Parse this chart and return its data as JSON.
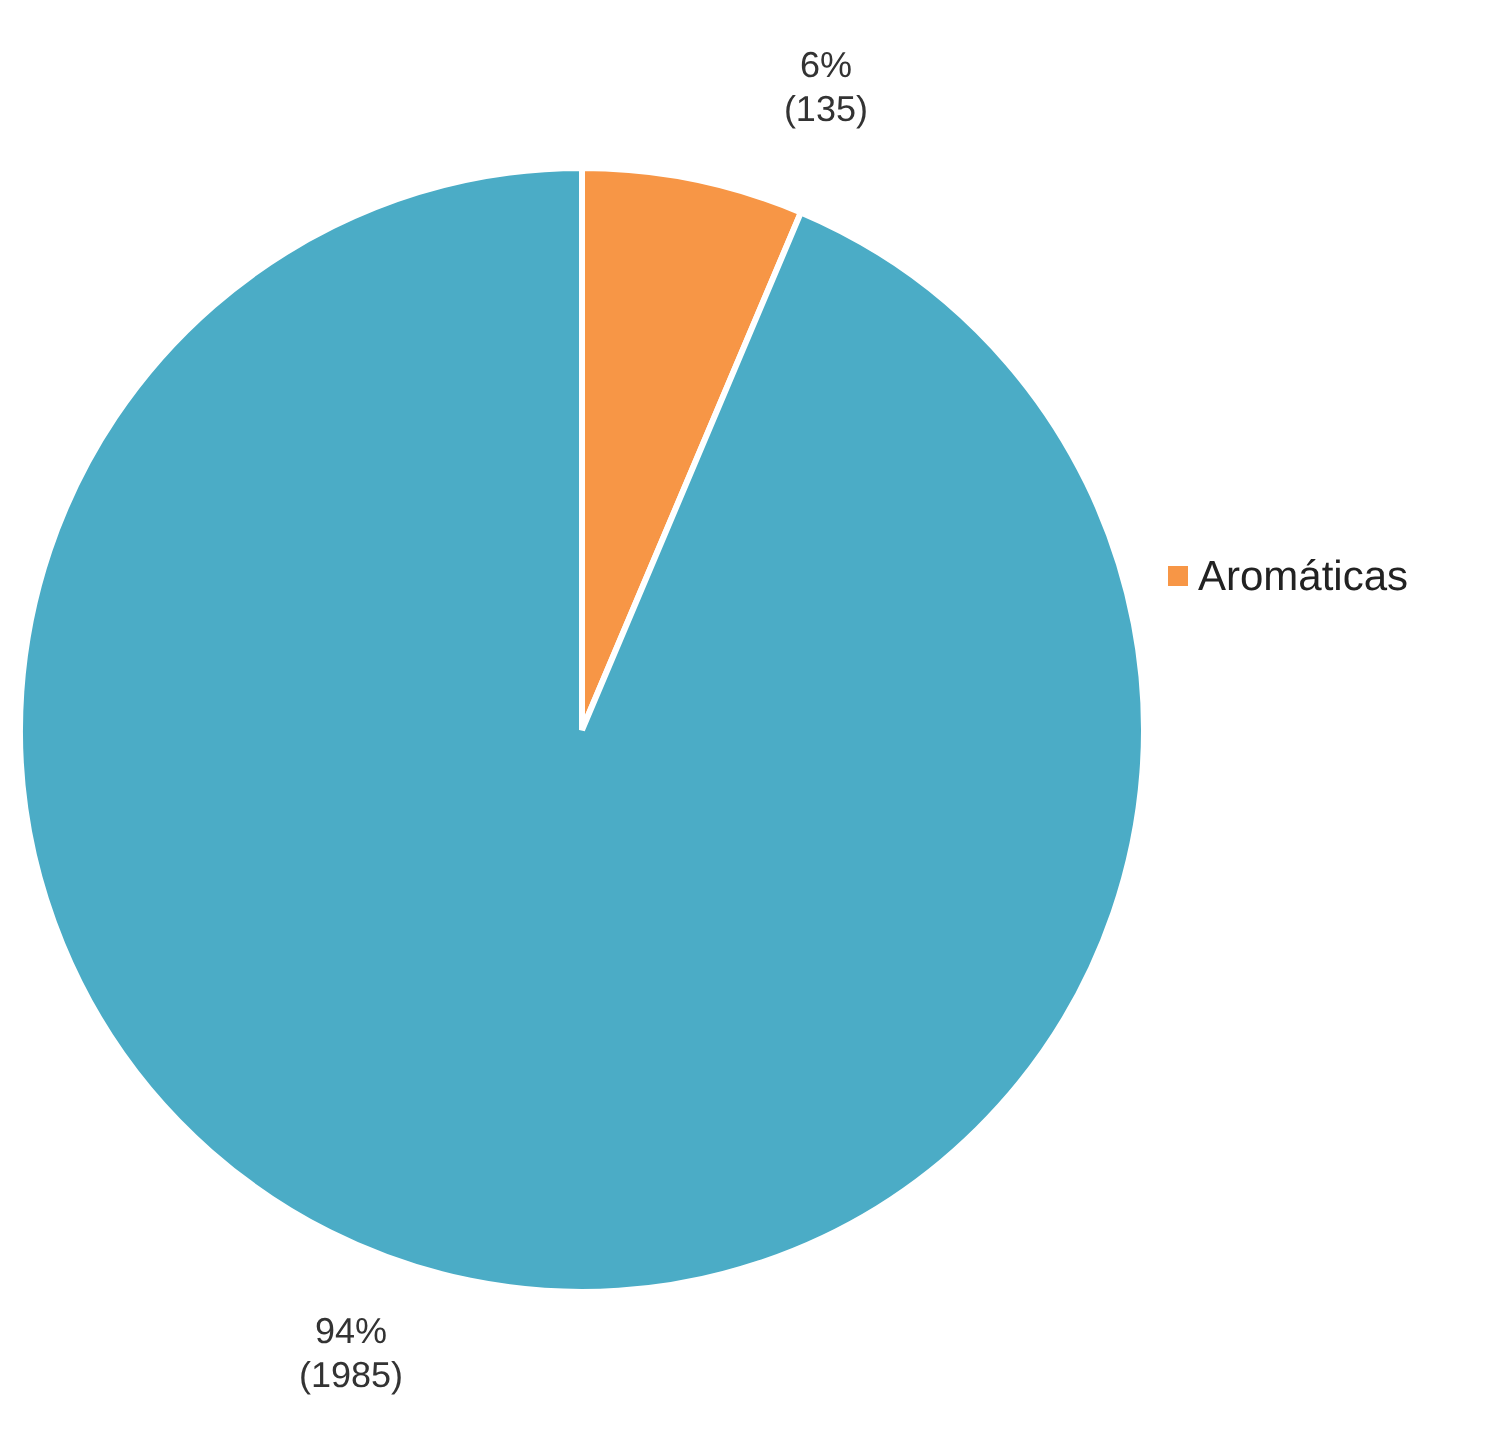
{
  "chart_data": {
    "type": "pie",
    "categories": [
      "Aromáticas",
      null
    ],
    "values": [
      135,
      1985
    ],
    "colors": [
      "#f79646",
      "#4bacc6"
    ],
    "value_labels": [
      "6%\n(135)",
      "94%\n(1985)"
    ],
    "legend": "right"
  }
}
